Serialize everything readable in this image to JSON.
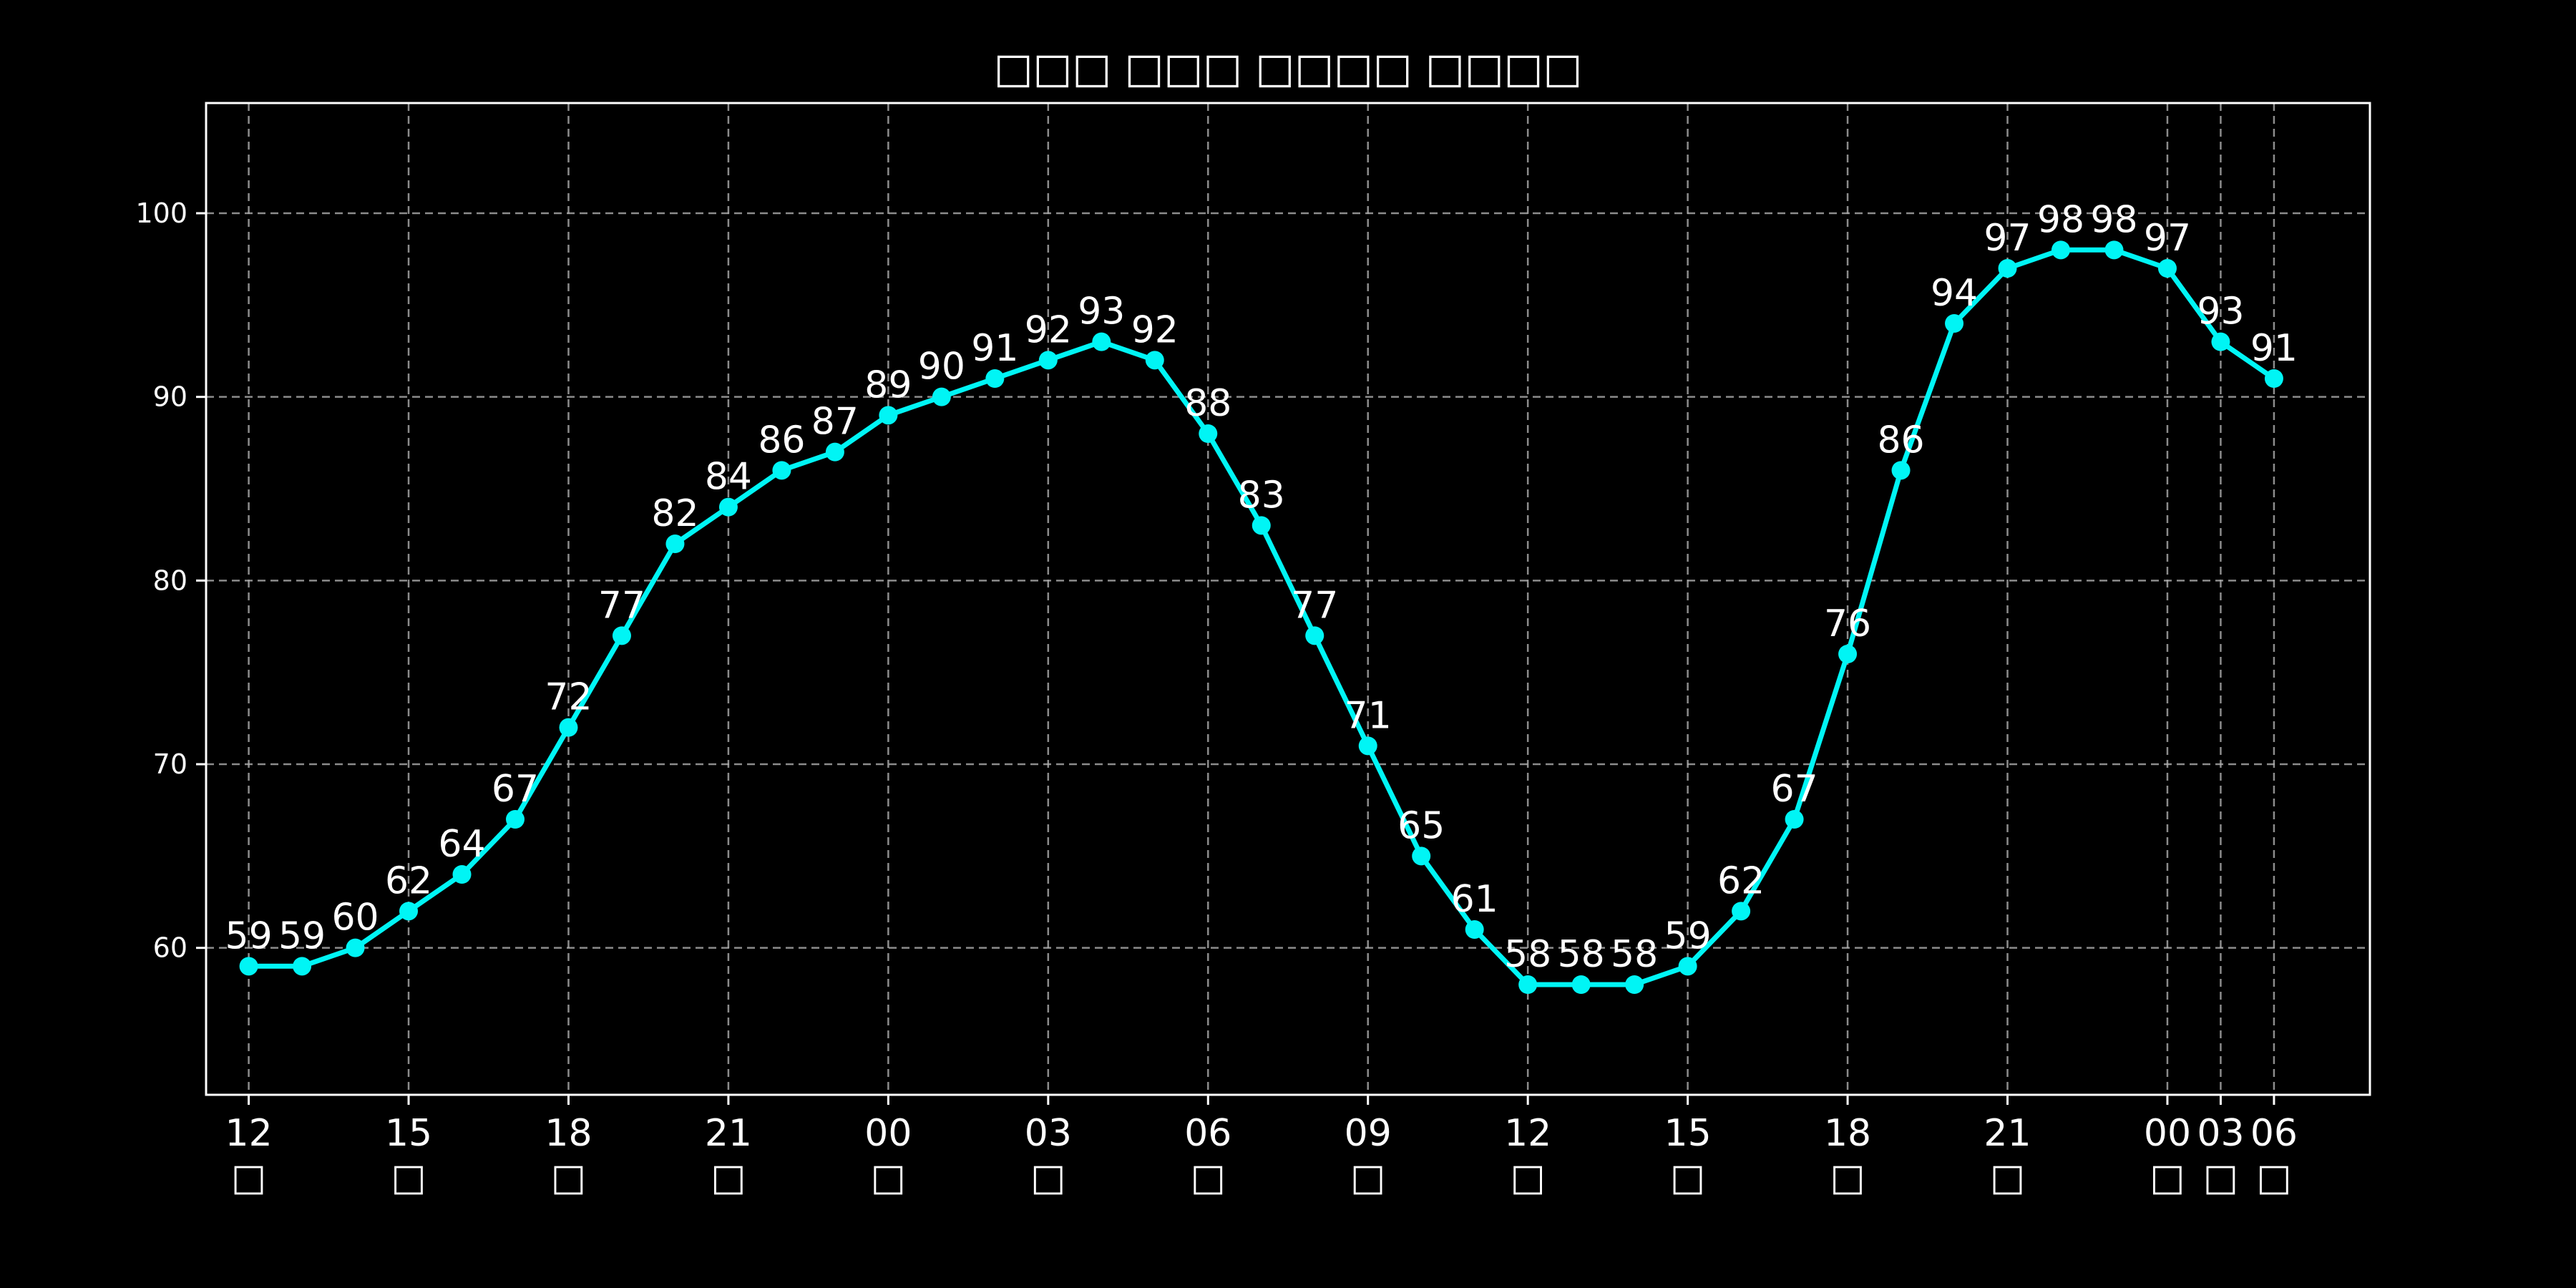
{
  "chart_data": {
    "type": "line",
    "title": "□□□ □□□ □□□□ □□□□",
    "xlabel": "",
    "ylabel": "",
    "ylim": [
      52,
      106
    ],
    "yticks": [
      60,
      70,
      80,
      90,
      100
    ],
    "grid": true,
    "x_index_range": [
      -0.8,
      39.8
    ],
    "xticks": [
      {
        "index": 0,
        "time": "12",
        "day": "□"
      },
      {
        "index": 3,
        "time": "15",
        "day": "□"
      },
      {
        "index": 6,
        "time": "18",
        "day": "□"
      },
      {
        "index": 9,
        "time": "21",
        "day": "□"
      },
      {
        "index": 12,
        "time": "00",
        "day": "□"
      },
      {
        "index": 15,
        "time": "03",
        "day": "□"
      },
      {
        "index": 18,
        "time": "06",
        "day": "□"
      },
      {
        "index": 21,
        "time": "09",
        "day": "□"
      },
      {
        "index": 24,
        "time": "12",
        "day": "□"
      },
      {
        "index": 27,
        "time": "15",
        "day": "□"
      },
      {
        "index": 30,
        "time": "18",
        "day": "□"
      },
      {
        "index": 33,
        "time": "21",
        "day": "□"
      },
      {
        "index": 36,
        "time": "00",
        "day": "□"
      },
      {
        "index": 37,
        "time": "03",
        "day": "□"
      },
      {
        "index": 38,
        "time": "06",
        "day": "□"
      }
    ],
    "series": [
      {
        "color": "#00f5f5",
        "values": [
          59,
          59,
          60,
          62,
          64,
          67,
          72,
          77,
          82,
          84,
          86,
          87,
          89,
          90,
          91,
          92,
          93,
          92,
          88,
          83,
          77,
          71,
          65,
          61,
          58,
          58,
          58,
          59,
          62,
          67,
          76,
          86,
          94,
          97,
          98,
          98,
          97,
          93,
          91
        ]
      }
    ]
  }
}
